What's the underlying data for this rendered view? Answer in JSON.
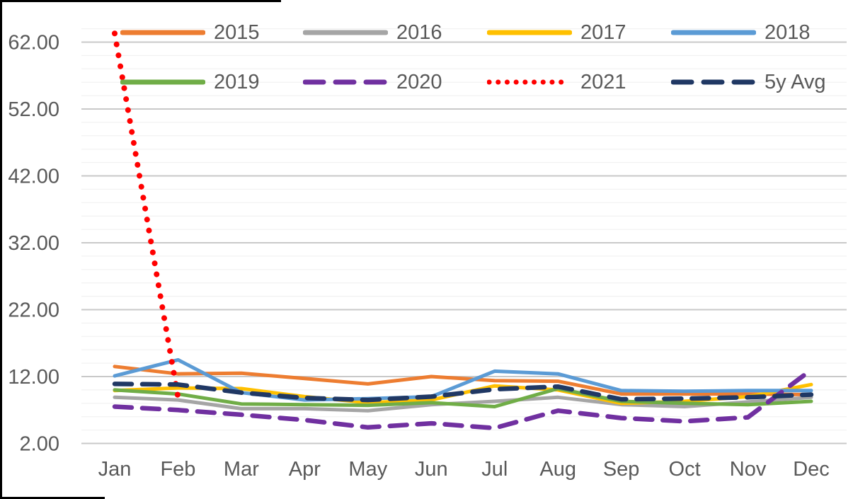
{
  "chart_data": {
    "type": "line",
    "title": "",
    "xlabel": "",
    "ylabel": "",
    "categories": [
      "Jan",
      "Feb",
      "Mar",
      "Apr",
      "May",
      "Jun",
      "Jul",
      "Aug",
      "Sep",
      "Oct",
      "Nov",
      "Dec"
    ],
    "y_axis": {
      "min": 2,
      "max": 64,
      "major_step": 10,
      "minor_step": 2,
      "tick_labels": [
        {
          "value": 62,
          "label": "62.00"
        },
        {
          "value": 52,
          "label": "52.00"
        },
        {
          "value": 42,
          "label": "42.00"
        },
        {
          "value": 32,
          "label": "32.00"
        },
        {
          "value": 22,
          "label": "22.00"
        },
        {
          "value": 12,
          "label": "12.00"
        },
        {
          "value": 2,
          "label": "2.00"
        }
      ]
    },
    "grid": true,
    "legend_position": "top",
    "legend_rows": [
      [
        "2015",
        "2016",
        "2017",
        "2018"
      ],
      [
        "2019",
        "2020",
        "2021",
        "5y Avg"
      ]
    ],
    "series": [
      {
        "name": "2015",
        "color": "#ED7D31",
        "style": "solid",
        "values": [
          13.5,
          12.4,
          12.5,
          11.7,
          10.9,
          12.0,
          11.4,
          11.3,
          9.4,
          9.4,
          9.4,
          9.3
        ]
      },
      {
        "name": "2016",
        "color": "#A5A5A5",
        "style": "solid",
        "values": [
          8.9,
          8.5,
          7.2,
          7.2,
          6.9,
          7.8,
          8.3,
          8.9,
          7.8,
          7.5,
          8.2,
          8.9
        ]
      },
      {
        "name": "2017",
        "color": "#FFC000",
        "style": "solid",
        "values": [
          9.9,
          10.3,
          10.2,
          9.0,
          8.1,
          8.5,
          10.6,
          10.0,
          8.0,
          8.3,
          9.0,
          10.8
        ]
      },
      {
        "name": "2018",
        "color": "#5B9BD5",
        "style": "solid",
        "values": [
          12.1,
          14.5,
          9.6,
          8.5,
          8.7,
          9.0,
          12.8,
          12.4,
          9.9,
          9.8,
          9.9,
          9.9
        ]
      },
      {
        "name": "2019",
        "color": "#70AD47",
        "style": "solid",
        "values": [
          10.0,
          9.4,
          7.9,
          7.8,
          7.7,
          8.1,
          7.5,
          10.2,
          8.3,
          8.0,
          7.8,
          8.3
        ]
      },
      {
        "name": "2020",
        "color": "#7030A0",
        "style": "dashed",
        "values": [
          7.5,
          7.0,
          6.3,
          5.5,
          4.4,
          5.0,
          4.3,
          6.9,
          5.8,
          5.3,
          5.9,
          13.0
        ]
      },
      {
        "name": "2021",
        "color": "#FF0000",
        "style": "dotted",
        "values": [
          63.3,
          8.9,
          null,
          null,
          null,
          null,
          null,
          null,
          null,
          null,
          null,
          null
        ]
      },
      {
        "name": "5y Avg",
        "color": "#203864",
        "style": "dashed",
        "values": [
          10.9,
          10.8,
          9.6,
          8.8,
          8.5,
          9.0,
          10.1,
          10.5,
          8.6,
          8.7,
          8.9,
          9.3
        ]
      }
    ],
    "colors": {
      "axis_text": "#595959",
      "major_gridline": "#C9C9C9",
      "minor_gridline": "#EFEFEF",
      "frame": "#000000"
    }
  }
}
